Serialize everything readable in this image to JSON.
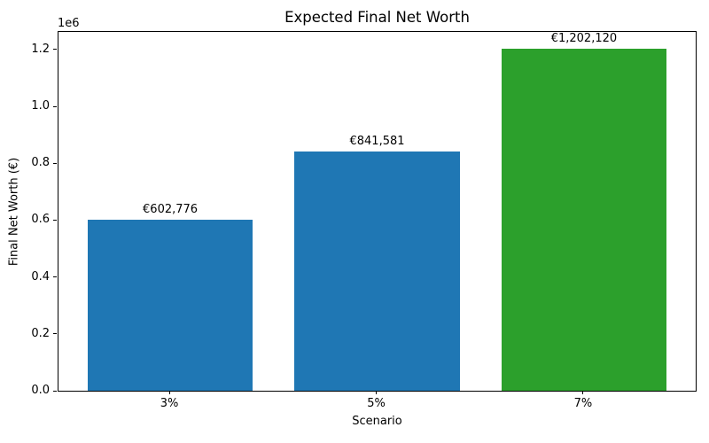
{
  "chart_data": {
    "type": "bar",
    "title": "Expected Final Net Worth",
    "xlabel": "Scenario",
    "ylabel": "Final Net Worth (€)",
    "categories": [
      "3%",
      "5%",
      "7%"
    ],
    "values": [
      602776,
      841581,
      1202120
    ],
    "bar_labels": [
      "€602,776",
      "€841,581",
      "€1,202,120"
    ],
    "bar_colors": [
      "#1f77b4",
      "#1f77b4",
      "#2ca02c"
    ],
    "ylim": [
      0,
      1262226
    ],
    "y_ticks": [
      0,
      200000,
      400000,
      600000,
      800000,
      1000000,
      1200000
    ],
    "y_tick_labels": [
      "0.0",
      "0.2",
      "0.4",
      "0.6",
      "0.8",
      "1.0",
      "1.2"
    ],
    "y_offset_label": "1e6",
    "grid": false,
    "legend": null,
    "background_color": "#ffffff",
    "spine_color": "#000000",
    "text_color": "#000000"
  }
}
